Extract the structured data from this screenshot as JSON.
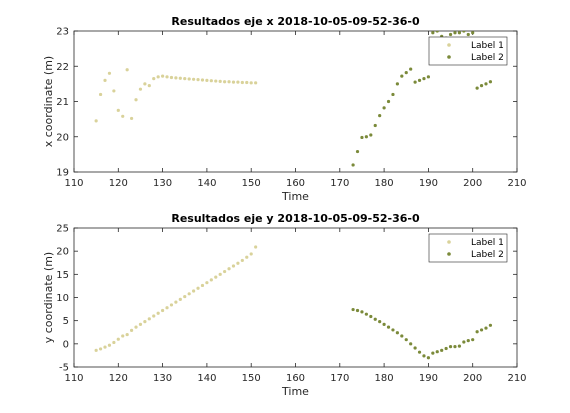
{
  "chart_data": [
    {
      "type": "scatter",
      "title": "Resultados eje x 2018-10-05-09-52-36-0",
      "xlabel": "Time",
      "ylabel": "x coordinate (m)",
      "xlim": [
        110,
        210
      ],
      "ylim": [
        19,
        23
      ],
      "xticks": [
        "110",
        "120",
        "130",
        "140",
        "150",
        "160",
        "170",
        "180",
        "190",
        "200",
        "210"
      ],
      "yticks": [
        "19",
        "20",
        "21",
        "22",
        "23"
      ],
      "legend_position": "top-right",
      "grid": false,
      "series": [
        {
          "name": "Label 1",
          "color": "#d9d29a",
          "x": [
            115,
            116,
            117,
            118,
            119,
            120,
            121,
            122,
            123,
            124,
            125,
            126,
            127,
            128,
            129,
            130,
            131,
            132,
            133,
            134,
            135,
            136,
            137,
            138,
            139,
            140,
            141,
            142,
            143,
            144,
            145,
            146,
            147,
            148,
            149,
            150,
            151
          ],
          "y": [
            20.45,
            21.2,
            21.6,
            21.8,
            21.3,
            20.75,
            20.58,
            21.9,
            20.52,
            21.05,
            21.35,
            21.5,
            21.45,
            21.65,
            21.7,
            21.72,
            21.7,
            21.68,
            21.67,
            21.66,
            21.65,
            21.64,
            21.63,
            21.62,
            21.61,
            21.6,
            21.59,
            21.58,
            21.57,
            21.56,
            21.56,
            21.55,
            21.55,
            21.54,
            21.54,
            21.53,
            21.53
          ]
        },
        {
          "name": "Label 2",
          "color": "#7b8a3a",
          "x": [
            173,
            174,
            175,
            176,
            177,
            178,
            179,
            180,
            181,
            182,
            183,
            184,
            185,
            186,
            187,
            188,
            189,
            190,
            191,
            192,
            193,
            194,
            195,
            196,
            197,
            198,
            199,
            200,
            201,
            202,
            203,
            204
          ],
          "y": [
            19.2,
            19.58,
            19.98,
            20.0,
            20.05,
            20.32,
            20.6,
            20.82,
            21.0,
            21.2,
            21.5,
            21.72,
            21.82,
            21.92,
            21.55,
            21.6,
            21.65,
            21.7,
            22.95,
            23.0,
            22.85,
            22.8,
            22.9,
            22.95,
            22.95,
            23.0,
            22.9,
            22.95,
            21.38,
            21.45,
            21.5,
            21.56
          ]
        }
      ]
    },
    {
      "type": "scatter",
      "title": "Resultados eje y 2018-10-05-09-52-36-0",
      "xlabel": "Time",
      "ylabel": "y coordinate (m)",
      "xlim": [
        110,
        210
      ],
      "ylim": [
        -5,
        25
      ],
      "xticks": [
        "110",
        "120",
        "130",
        "140",
        "150",
        "160",
        "170",
        "180",
        "190",
        "200",
        "210"
      ],
      "yticks": [
        "-5",
        "0",
        "5",
        "10",
        "15",
        "20",
        "25"
      ],
      "legend_position": "top-right",
      "grid": false,
      "series": [
        {
          "name": "Label 1",
          "color": "#d9d29a",
          "x": [
            115,
            116,
            117,
            118,
            119,
            120,
            121,
            122,
            123,
            124,
            125,
            126,
            127,
            128,
            129,
            130,
            131,
            132,
            133,
            134,
            135,
            136,
            137,
            138,
            139,
            140,
            141,
            142,
            143,
            144,
            145,
            146,
            147,
            148,
            149,
            150,
            151
          ],
          "y": [
            -1.4,
            -1.1,
            -0.7,
            -0.3,
            0.3,
            1.0,
            1.7,
            2.0,
            2.9,
            3.6,
            4.2,
            4.8,
            5.4,
            6.0,
            6.6,
            7.2,
            7.8,
            8.4,
            9.0,
            9.6,
            10.2,
            10.8,
            11.4,
            12.0,
            12.6,
            13.2,
            13.8,
            14.4,
            15.0,
            15.6,
            16.2,
            16.8,
            17.4,
            18.0,
            18.7,
            19.4,
            20.9
          ]
        },
        {
          "name": "Label 2",
          "color": "#7b8a3a",
          "x": [
            173,
            174,
            175,
            176,
            177,
            178,
            179,
            180,
            181,
            182,
            183,
            184,
            185,
            186,
            187,
            188,
            189,
            190,
            191,
            192,
            193,
            194,
            195,
            196,
            197,
            198,
            199,
            200,
            201,
            202,
            203,
            204
          ],
          "y": [
            7.4,
            7.2,
            6.9,
            6.4,
            5.9,
            5.3,
            4.8,
            4.2,
            3.6,
            3.0,
            2.4,
            1.7,
            0.9,
            0.0,
            -0.9,
            -1.8,
            -2.6,
            -3.0,
            -2.0,
            -1.7,
            -1.4,
            -1.0,
            -0.6,
            -0.6,
            -0.5,
            0.4,
            0.7,
            0.9,
            2.6,
            3.0,
            3.4,
            4.0
          ]
        }
      ]
    }
  ]
}
